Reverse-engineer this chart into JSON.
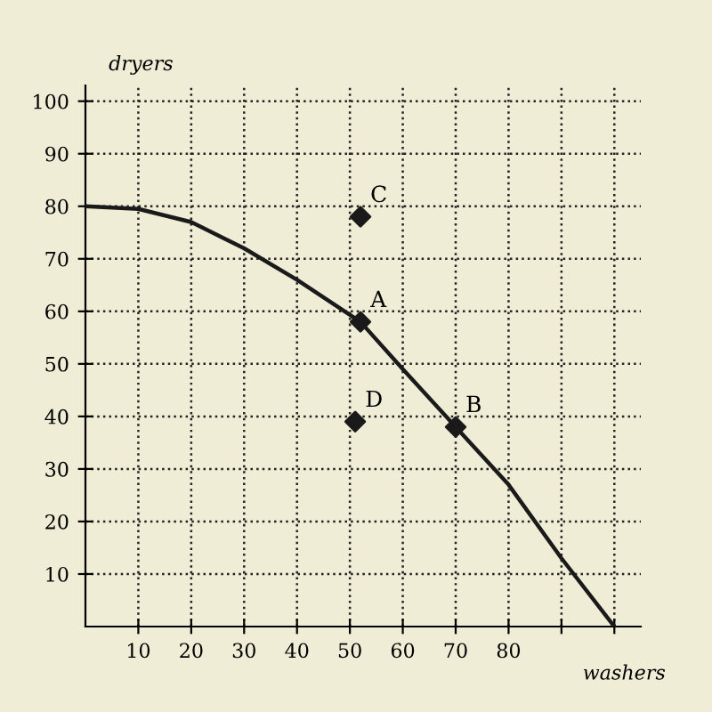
{
  "chart_data": {
    "type": "line",
    "xlabel": "washers",
    "ylabel": "dryers",
    "series": [
      {
        "color": "#1a1a1a",
        "marker": "none",
        "line_style": "solid",
        "x": [
          0,
          10,
          20,
          30,
          40,
          52,
          60,
          70,
          80,
          90,
          100
        ],
        "values": [
          80,
          79.5,
          77,
          72,
          66,
          58,
          49,
          38,
          27,
          13,
          0
        ]
      },
      {
        "type": "scatter",
        "color": "#1a1a1a",
        "marker": "diamond",
        "x": [
          52,
          70,
          52,
          51
        ],
        "values": [
          58,
          38,
          78,
          39
        ]
      }
    ],
    "annotations": [
      {
        "text": "A",
        "x": 52,
        "y": 58
      },
      {
        "text": "B",
        "x": 70,
        "y": 38
      },
      {
        "text": "C",
        "x": 52,
        "y": 78
      },
      {
        "text": "D",
        "x": 51,
        "y": 39
      }
    ],
    "xlim": [
      0,
      105
    ],
    "ylim": [
      0,
      103
    ],
    "xticks": [
      10,
      20,
      30,
      40,
      50,
      60,
      70,
      80,
      {
        "value": 90,
        "label": null
      },
      {
        "value": 100,
        "label": null
      }
    ],
    "yticks": [
      10,
      20,
      30,
      40,
      50,
      60,
      70,
      80,
      90,
      100
    ],
    "grid": true
  }
}
